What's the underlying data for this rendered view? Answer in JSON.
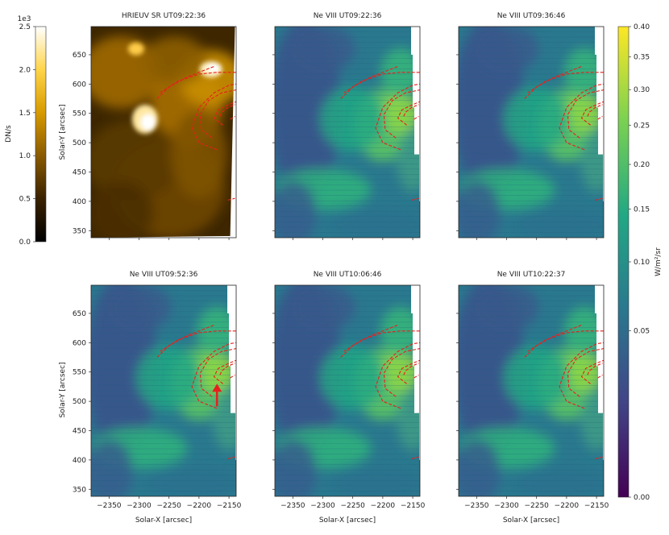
{
  "chart_data": {
    "type": "heatmap",
    "figure_note_exponent": "1e3",
    "left_colorbar": {
      "label": "DN/s",
      "exponent": "1e3",
      "ticks": [
        "0.0",
        "0.5",
        "1.0",
        "1.5",
        "2.0",
        "2.5"
      ],
      "range": [
        0,
        2.5
      ],
      "colors": [
        "#000000",
        "#3a2200",
        "#8a5a00",
        "#d79a00",
        "#ffd54a",
        "#ffffff"
      ]
    },
    "right_colorbar": {
      "label": "W/m²/sr",
      "ticks": [
        "0.00",
        "0.05",
        "0.10",
        "0.15",
        "0.20",
        "0.25",
        "0.30",
        "0.35",
        "0.40"
      ],
      "tick_values": [
        0.0,
        0.05,
        0.1,
        0.15,
        0.2,
        0.25,
        0.3,
        0.35,
        0.4
      ],
      "range": [
        0,
        0.4
      ],
      "scale": "sqrt",
      "colors": [
        "#440154",
        "#414487",
        "#2a788e",
        "#22a884",
        "#7ad151",
        "#fde725"
      ]
    },
    "x_axis": {
      "label": "Solar-X [arcsec]",
      "range": [
        -2380,
        -2138
      ],
      "ticks": [
        "−2350",
        "−2300",
        "−2250",
        "−2200",
        "−2150"
      ],
      "tick_values": [
        -2350,
        -2300,
        -2250,
        -2200,
        -2150
      ]
    },
    "y_axis": {
      "label": "Solar-Y [arcsec]",
      "range": [
        338,
        698
      ],
      "ticks": [
        "350",
        "400",
        "450",
        "500",
        "550",
        "600",
        "650"
      ],
      "tick_values": [
        350,
        400,
        450,
        500,
        550,
        600,
        650
      ]
    },
    "panels": [
      {
        "title": "HRIEUV SR UT09:22:36",
        "instrument": "HRIEUV",
        "colormap": "left_colorbar"
      },
      {
        "title": "Ne VIII UT09:22:36",
        "instrument": "Ne VIII",
        "colormap": "right_colorbar"
      },
      {
        "title": "Ne VIII UT09:36:46",
        "instrument": "Ne VIII",
        "colormap": "right_colorbar"
      },
      {
        "title": "Ne VIII UT09:52:36",
        "instrument": "Ne VIII",
        "colormap": "right_colorbar",
        "has_arrow": true,
        "arrow_tip": [
          -2170,
          530
        ]
      },
      {
        "title": "Ne VIII UT10:06:46",
        "instrument": "Ne VIII",
        "colormap": "right_colorbar"
      },
      {
        "title": "Ne VIII UT10:22:37",
        "instrument": "Ne VIII",
        "colormap": "right_colorbar"
      }
    ],
    "overlay_loops": [
      {
        "color": "#e8201c",
        "style": "dashed",
        "points": [
          [
            -2270,
            575
          ],
          [
            -2250,
            595
          ],
          [
            -2220,
            612
          ],
          [
            -2195,
            622
          ],
          [
            -2175,
            630
          ]
        ]
      },
      {
        "color": "#e8201c",
        "style": "dashed",
        "points": [
          [
            -2265,
            585
          ],
          [
            -2235,
            605
          ],
          [
            -2200,
            617
          ],
          [
            -2170,
            620
          ],
          [
            -2138,
            620
          ]
        ]
      },
      {
        "color": "#e8201c",
        "style": "dashed",
        "points": [
          [
            -2170,
            488
          ],
          [
            -2200,
            500
          ],
          [
            -2212,
            525
          ],
          [
            -2200,
            560
          ],
          [
            -2175,
            585
          ],
          [
            -2150,
            598
          ],
          [
            -2138,
            600
          ]
        ]
      },
      {
        "color": "#e8201c",
        "style": "dashed",
        "points": [
          [
            -2178,
            508
          ],
          [
            -2196,
            522
          ],
          [
            -2198,
            548
          ],
          [
            -2184,
            572
          ],
          [
            -2162,
            585
          ],
          [
            -2138,
            590
          ]
        ]
      },
      {
        "color": "#e8201c",
        "style": "dashed",
        "points": [
          [
            -2160,
            530
          ],
          [
            -2175,
            542
          ],
          [
            -2168,
            556
          ],
          [
            -2150,
            565
          ],
          [
            -2138,
            570
          ]
        ]
      },
      {
        "color": "#e8201c",
        "style": "dashed",
        "points": [
          [
            -2165,
            545
          ],
          [
            -2162,
            552
          ],
          [
            -2152,
            560
          ],
          [
            -2140,
            565
          ]
        ]
      },
      {
        "color": "#e8201c",
        "style": "dashed",
        "points": [
          [
            -2148,
            540
          ],
          [
            -2140,
            545
          ]
        ]
      },
      {
        "color": "#e8201c",
        "style": "dashed",
        "points": [
          [
            -2152,
            402
          ],
          [
            -2140,
            405
          ]
        ]
      }
    ],
    "grid": false,
    "legend": "none"
  }
}
